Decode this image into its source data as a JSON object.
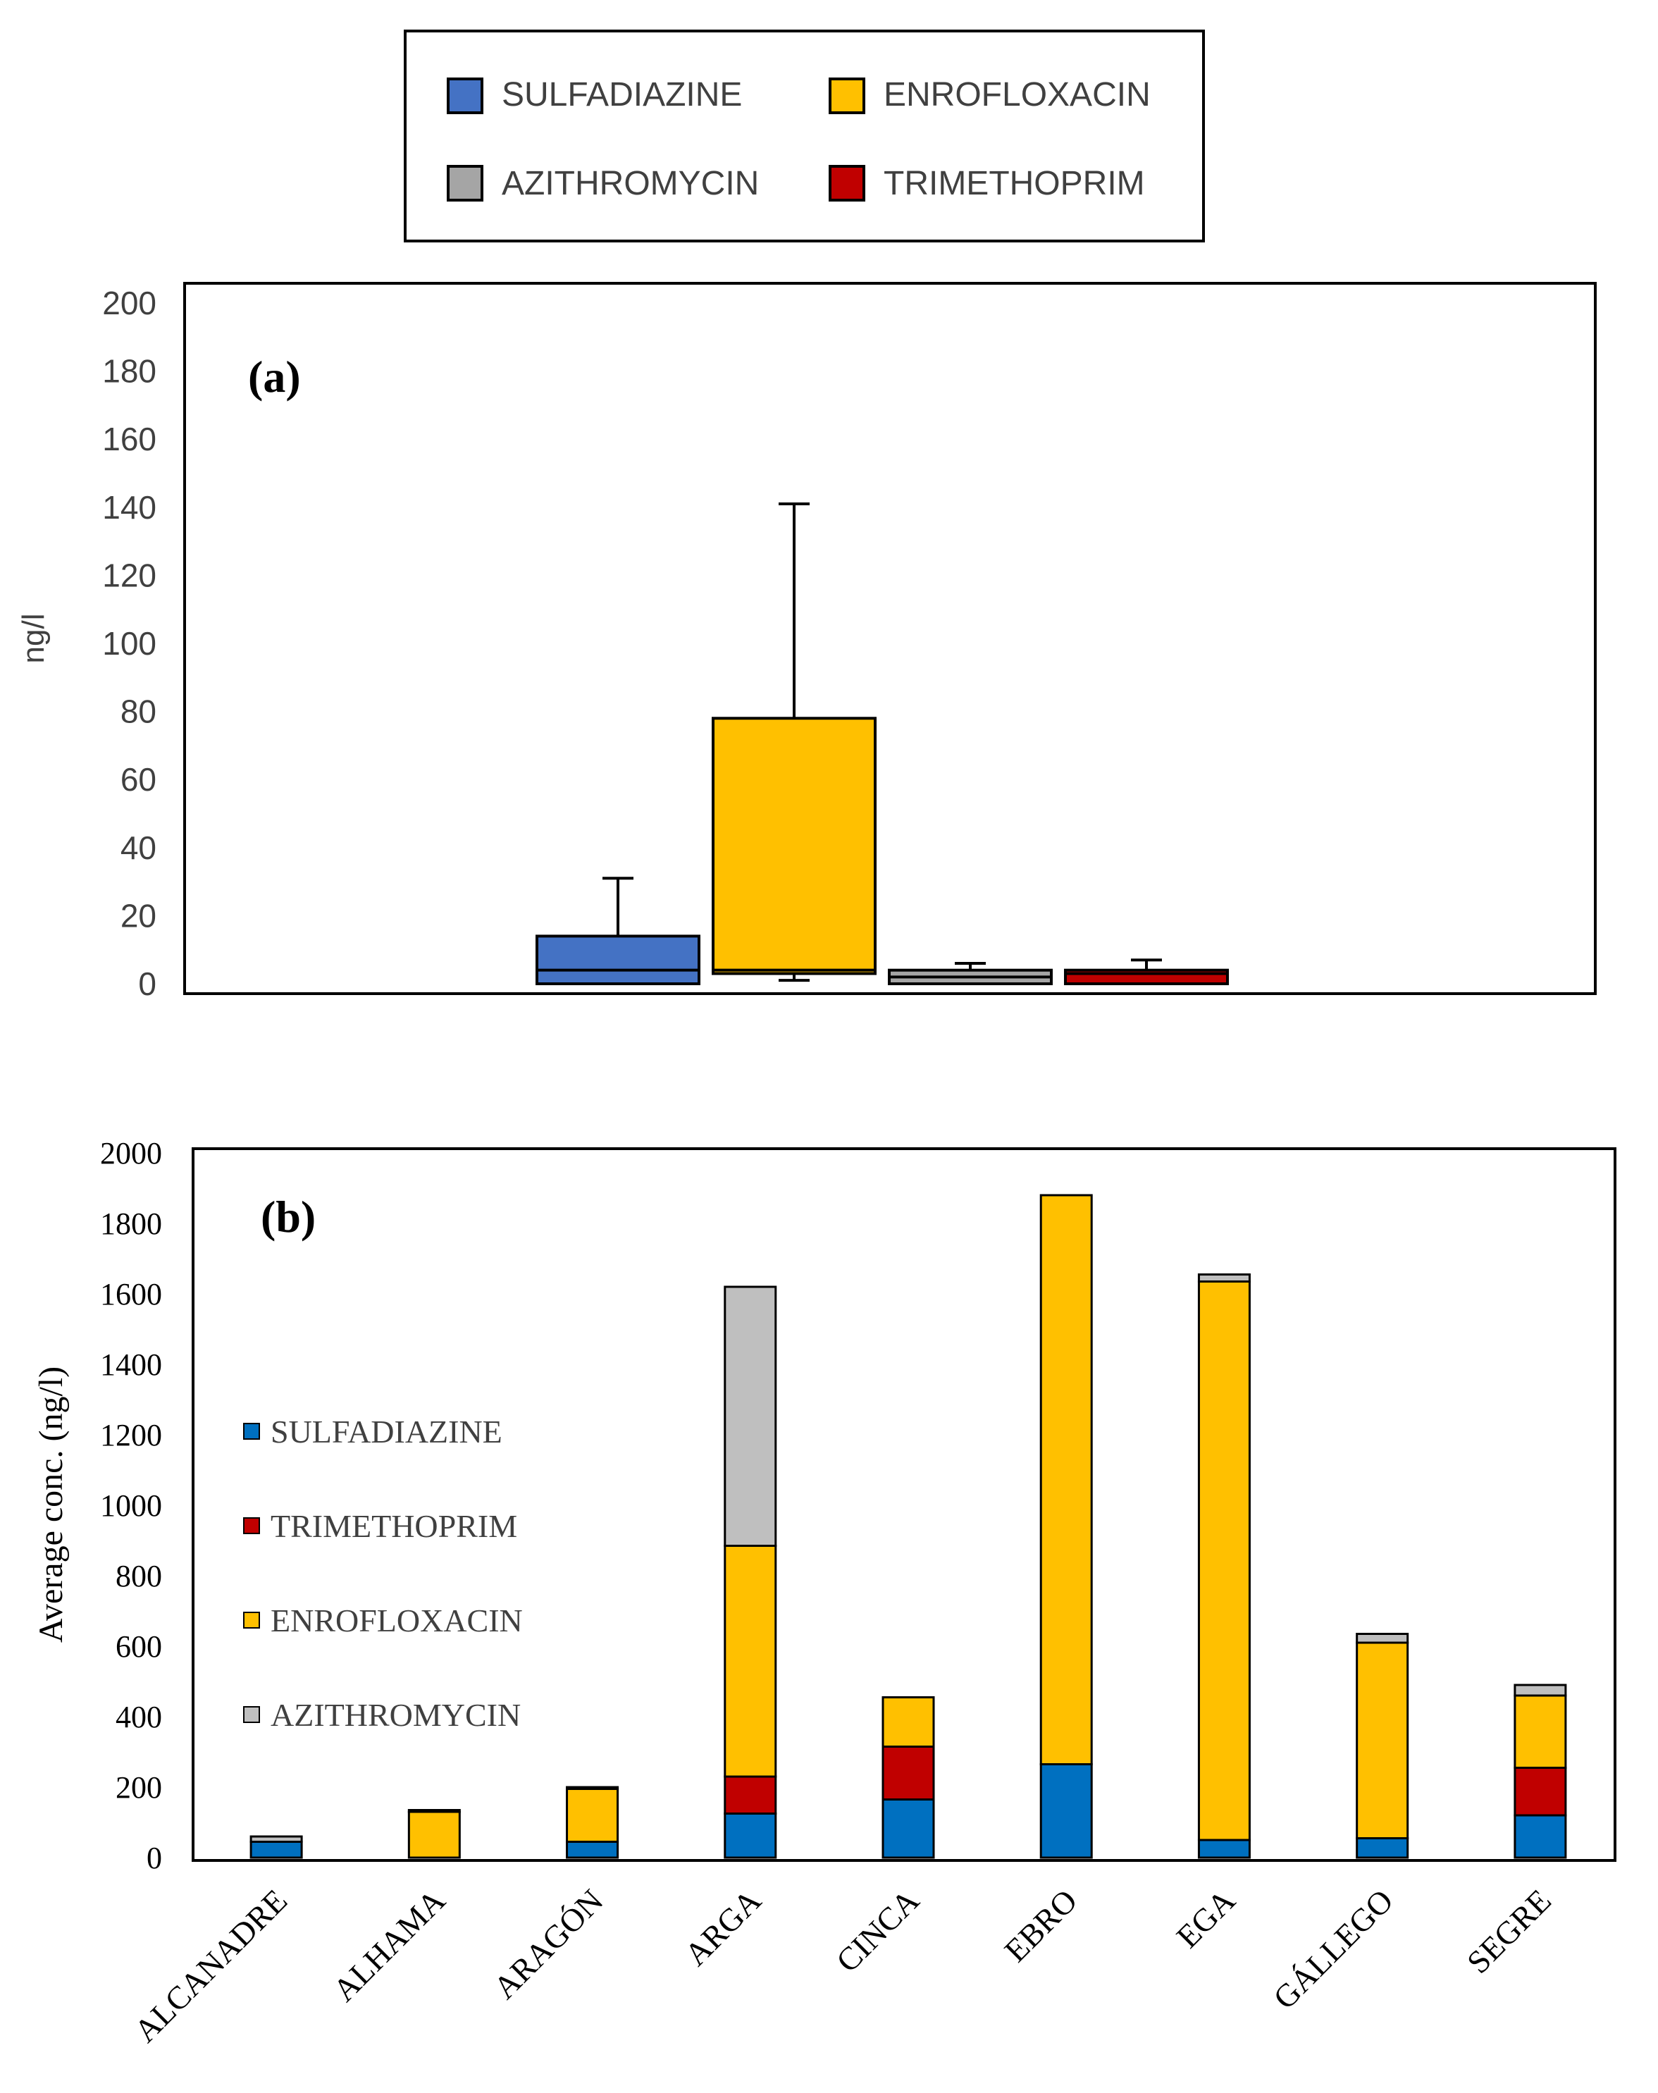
{
  "colors": {
    "sulfadiazine_a": "#4472c4",
    "enrofloxacin_a": "#ffc000",
    "azithromycin_a": "#a5a5a5",
    "trimethoprim_a": "#c00000",
    "sulfadiazine_b": "#0070c0",
    "trimethoprim_b": "#c00000",
    "enrofloxacin_b": "#ffc000",
    "azithromycin_b": "#bfbfbf"
  },
  "top_legend": {
    "items": [
      {
        "label": "SULFADIAZINE",
        "color_key": "sulfadiazine_a"
      },
      {
        "label": "ENROFLOXACIN",
        "color_key": "enrofloxacin_a"
      },
      {
        "label": "AZITHROMYCIN",
        "color_key": "azithromycin_a"
      },
      {
        "label": "TRIMETHOPRIM",
        "color_key": "trimethoprim_a"
      }
    ]
  },
  "chart_data": [
    {
      "type": "box",
      "panel_label": "(a)",
      "ylabel": "ng/l",
      "ylim": [
        0,
        200
      ],
      "yticks": [
        "0",
        "20",
        "40",
        "60",
        "80",
        "100",
        "120",
        "140",
        "160",
        "180",
        "200"
      ],
      "series": [
        {
          "name": "SULFADIAZINE",
          "color_key": "sulfadiazine_a",
          "min": 0,
          "q1": 0,
          "median": 4,
          "q3": 14,
          "max": 31
        },
        {
          "name": "ENROFLOXACIN",
          "color_key": "enrofloxacin_a",
          "min": 1,
          "q1": 3,
          "median": 4,
          "q3": 78,
          "max": 141
        },
        {
          "name": "AZITHROMYCIN",
          "color_key": "azithromycin_a",
          "min": 0,
          "q1": 0,
          "median": 2,
          "q3": 4,
          "max": 6
        },
        {
          "name": "TRIMETHOPRIM",
          "color_key": "trimethoprim_a",
          "min": 0,
          "q1": 0,
          "median": 3,
          "q3": 4,
          "max": 7
        }
      ]
    },
    {
      "type": "stacked-bar",
      "panel_label": "(b)",
      "ylabel": "Average conc. (ng/l)",
      "ylim": [
        0,
        2000
      ],
      "yticks": [
        "0",
        "200",
        "400",
        "600",
        "800",
        "1000",
        "1200",
        "1400",
        "1600",
        "1800",
        "2000"
      ],
      "categories": [
        "ALCANADRE",
        "ALHAMA",
        "ARAGÓN",
        "ARGA",
        "CINCA",
        "EBRO",
        "EGA",
        "GÁLLEGO",
        "SEGRE"
      ],
      "series": [
        {
          "name": "SULFADIAZINE",
          "color_key": "sulfadiazine_b",
          "values": [
            45,
            0,
            45,
            125,
            165,
            265,
            50,
            55,
            120
          ]
        },
        {
          "name": "TRIMETHOPRIM",
          "color_key": "trimethoprim_b",
          "values": [
            0,
            0,
            0,
            105,
            150,
            0,
            0,
            0,
            135
          ]
        },
        {
          "name": "ENROFLOXACIN",
          "color_key": "enrofloxacin_b",
          "values": [
            0,
            130,
            150,
            655,
            140,
            1615,
            1585,
            555,
            205
          ]
        },
        {
          "name": "AZITHROMYCIN",
          "color_key": "azithromycin_b",
          "values": [
            15,
            5,
            5,
            735,
            0,
            0,
            20,
            25,
            30
          ]
        }
      ],
      "legend": [
        "SULFADIAZINE",
        "TRIMETHOPRIM",
        "ENROFLOXACIN",
        "AZITHROMYCIN"
      ]
    }
  ]
}
